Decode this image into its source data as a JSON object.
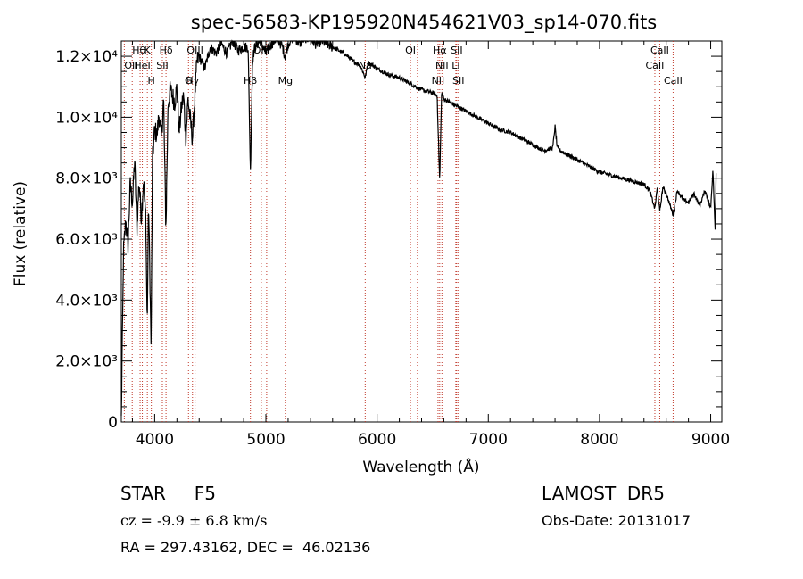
{
  "chart_data": {
    "type": "line",
    "title": "spec-56583-KP195920N454621V03_sp14-070.fits",
    "xlabel": "Wavelength (Å)",
    "ylabel": "Flux (relative)",
    "xlim": [
      3700,
      9100
    ],
    "ylim": [
      0,
      12500
    ],
    "grid": false,
    "xticks": [
      {
        "value": 4000,
        "label": "4000"
      },
      {
        "value": 5000,
        "label": "5000"
      },
      {
        "value": 6000,
        "label": "6000"
      },
      {
        "value": 7000,
        "label": "7000"
      },
      {
        "value": 8000,
        "label": "8000"
      },
      {
        "value": 9000,
        "label": "9000"
      }
    ],
    "yticks": [
      {
        "value": 0,
        "label": "0"
      },
      {
        "value": 2000,
        "label": "2.0×10³"
      },
      {
        "value": 4000,
        "label": "4.0×10³"
      },
      {
        "value": 6000,
        "label": "6.0×10³"
      },
      {
        "value": 8000,
        "label": "8.0×10³"
      },
      {
        "value": 10000,
        "label": "1.0×10⁴"
      },
      {
        "value": 12000,
        "label": "1.2×10⁴"
      }
    ],
    "series": [
      {
        "x": [
          3700,
          3720,
          3740,
          3760,
          3780,
          3800,
          3820,
          3840,
          3860,
          3880,
          3900,
          3910,
          3920,
          3933,
          3945,
          3955,
          3968,
          3980,
          4000,
          4020,
          4040,
          4060,
          4080,
          4101,
          4120,
          4140,
          4160,
          4180,
          4200,
          4220,
          4240,
          4260,
          4280,
          4300,
          4320,
          4340,
          4360,
          4380,
          4400,
          4450,
          4500,
          4550,
          4600,
          4650,
          4700,
          4750,
          4800,
          4840,
          4861,
          4880,
          4900,
          4950,
          5000,
          5050,
          5100,
          5150,
          5172,
          5200,
          5250,
          5300,
          5350,
          5400,
          5450,
          5500,
          5600,
          5700,
          5800,
          5850,
          5893,
          5920,
          6000,
          6100,
          6200,
          6300,
          6400,
          6500,
          6540,
          6563,
          6580,
          6600,
          6700,
          6800,
          6900,
          7000,
          7100,
          7200,
          7300,
          7400,
          7500,
          7580,
          7600,
          7620,
          7650,
          7700,
          7800,
          7900,
          8000,
          8100,
          8200,
          8300,
          8400,
          8450,
          8498,
          8520,
          8542,
          8570,
          8600,
          8662,
          8700,
          8750,
          8800,
          8850,
          8900,
          8950,
          9000,
          9020,
          9040,
          9050
        ],
        "y": [
          100,
          5600,
          6600,
          5800,
          7800,
          7200,
          8600,
          6300,
          7900,
          6700,
          8000,
          7200,
          6800,
          3100,
          7200,
          5200,
          2400,
          8600,
          9600,
          9400,
          10100,
          9300,
          10600,
          6300,
          10400,
          10900,
          10700,
          10500,
          11000,
          9500,
          10300,
          10700,
          9300,
          10600,
          9900,
          9300,
          10600,
          11800,
          12000,
          11600,
          12300,
          12100,
          12400,
          12100,
          12500,
          12200,
          12300,
          12300,
          8200,
          11900,
          12300,
          12500,
          12100,
          12400,
          12600,
          12300,
          12000,
          12400,
          12700,
          12400,
          12600,
          12600,
          12400,
          12500,
          12300,
          12100,
          11800,
          11700,
          11300,
          11800,
          11600,
          11400,
          11300,
          11100,
          10900,
          10800,
          10700,
          7900,
          10800,
          10600,
          10400,
          10200,
          10000,
          9800,
          9600,
          9500,
          9300,
          9100,
          8900,
          9000,
          9700,
          9000,
          8900,
          8800,
          8600,
          8400,
          8200,
          8100,
          8000,
          7900,
          7800,
          7600,
          7000,
          7700,
          6900,
          7700,
          7500,
          6800,
          7600,
          7300,
          7200,
          7500,
          7100,
          7600,
          7000,
          8300,
          6300,
          8400
        ]
      }
    ],
    "lines": [
      {
        "x": 3727,
        "label": "OII",
        "row": 2,
        "anchor": "start"
      },
      {
        "x": 3798,
        "label": "Hθ",
        "row": 1,
        "anchor": "start"
      },
      {
        "x": 3869,
        "label": "",
        "row": 0,
        "anchor": "middle"
      },
      {
        "x": 3889,
        "label": "HeI",
        "row": 2,
        "anchor": "middle"
      },
      {
        "x": 3934,
        "label": "K",
        "row": 1,
        "anchor": "middle"
      },
      {
        "x": 3970,
        "label": "H",
        "row": 3,
        "anchor": "middle"
      },
      {
        "x": 4069,
        "label": "SII",
        "row": 2,
        "anchor": "middle"
      },
      {
        "x": 4102,
        "label": "Hδ",
        "row": 1,
        "anchor": "middle"
      },
      {
        "x": 4304,
        "label": "G",
        "row": 3,
        "anchor": "middle"
      },
      {
        "x": 4340,
        "label": "Hγ",
        "row": 3,
        "anchor": "middle"
      },
      {
        "x": 4363,
        "label": "OIII",
        "row": 1,
        "anchor": "middle"
      },
      {
        "x": 4861,
        "label": "Hβ",
        "row": 3,
        "anchor": "middle"
      },
      {
        "x": 4959,
        "label": "OIII",
        "row": 1,
        "anchor": "middle"
      },
      {
        "x": 5007,
        "label": "",
        "row": 0,
        "anchor": "middle"
      },
      {
        "x": 5175,
        "label": "Mg",
        "row": 3,
        "anchor": "middle"
      },
      {
        "x": 5893,
        "label": "Na",
        "row": 2,
        "anchor": "middle"
      },
      {
        "x": 6300,
        "label": "OI",
        "row": 1,
        "anchor": "middle"
      },
      {
        "x": 6363,
        "label": "",
        "row": 0,
        "anchor": "middle"
      },
      {
        "x": 6548,
        "label": "NII",
        "row": 3,
        "anchor": "middle"
      },
      {
        "x": 6563,
        "label": "Hα",
        "row": 1,
        "anchor": "middle"
      },
      {
        "x": 6583,
        "label": "NII",
        "row": 2,
        "anchor": "middle"
      },
      {
        "x": 6708,
        "label": "Li",
        "row": 2,
        "anchor": "middle"
      },
      {
        "x": 6716,
        "label": "SII",
        "row": 1,
        "anchor": "middle"
      },
      {
        "x": 6731,
        "label": "SII",
        "row": 3,
        "anchor": "middle"
      },
      {
        "x": 8498,
        "label": "CaII",
        "row": 2,
        "anchor": "middle"
      },
      {
        "x": 8542,
        "label": "CaII",
        "row": 1,
        "anchor": "middle"
      },
      {
        "x": 8662,
        "label": "CaII",
        "row": 3,
        "anchor": "middle"
      }
    ]
  },
  "info": {
    "object": "STAR     F5",
    "velocity": "cz = -9.9 ± 6.8 km/s",
    "coords": "RA = 297.43162, DEC =  46.02136",
    "survey": "LAMOST  DR5",
    "obs_date": "Obs-Date: 20131017"
  }
}
